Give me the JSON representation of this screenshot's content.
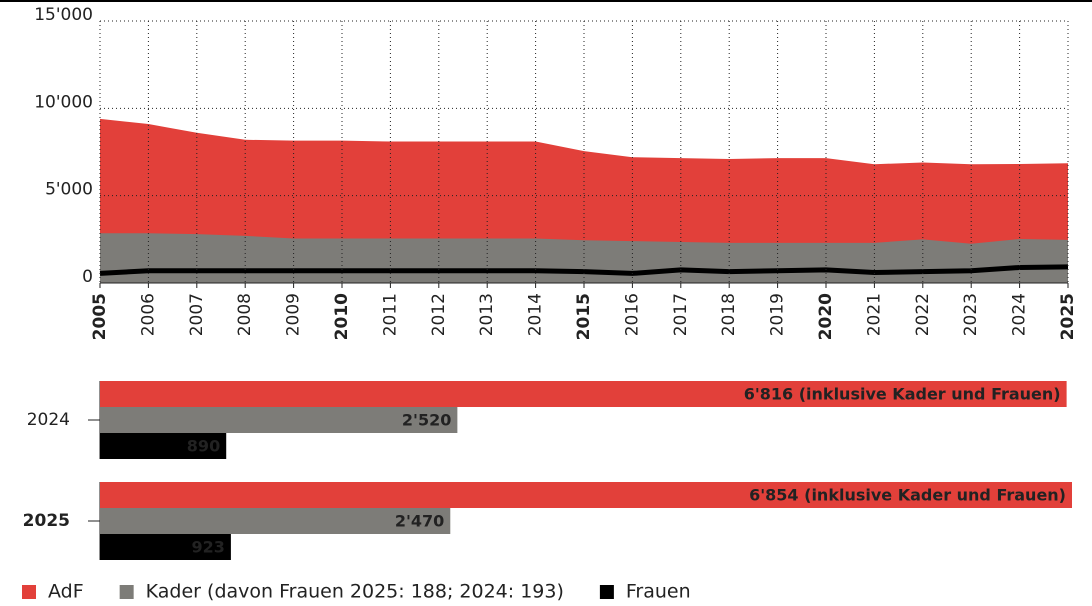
{
  "chart_data": [
    {
      "type": "area",
      "x": [
        2005,
        2006,
        2007,
        2008,
        2009,
        2010,
        2011,
        2012,
        2013,
        2014,
        2015,
        2016,
        2017,
        2018,
        2019,
        2020,
        2021,
        2022,
        2023,
        2024,
        2025
      ],
      "xlim": [
        2005,
        2025
      ],
      "ylim": [
        0,
        15000
      ],
      "yticks": [
        0,
        {
          "value": 5000,
          "label": "5'000"
        },
        {
          "value": 10000,
          "label": "10'000"
        },
        {
          "value": 15000,
          "label": "15'000"
        }
      ],
      "grid": true,
      "series": [
        {
          "name": "AdF",
          "color": "#e2403a",
          "values": [
            9400,
            9100,
            8600,
            8200,
            8150,
            8150,
            8100,
            8100,
            8100,
            8100,
            7550,
            7200,
            7150,
            7100,
            7150,
            7150,
            6800,
            6900,
            6800,
            6816,
            6854
          ]
        },
        {
          "name": "Kader (davon Frauen 2025: 188; 2024: 193)",
          "color": "#7d7c78",
          "values": [
            2850,
            2850,
            2800,
            2700,
            2550,
            2550,
            2550,
            2550,
            2550,
            2550,
            2450,
            2400,
            2350,
            2300,
            2300,
            2300,
            2300,
            2500,
            2250,
            2520,
            2470
          ]
        },
        {
          "name": "Frauen",
          "color": "#000000",
          "values": [
            550,
            700,
            700,
            700,
            700,
            700,
            700,
            700,
            700,
            700,
            650,
            550,
            750,
            650,
            700,
            750,
            600,
            650,
            700,
            890,
            923
          ]
        }
      ]
    },
    {
      "type": "hbar",
      "categories": [
        "2024",
        "2025"
      ],
      "series": [
        {
          "color": "#e2403a",
          "values": [
            6816,
            6854
          ],
          "value_labels": [
            "6'816 (inklusive Kader und Frauen)",
            "6'854 (inklusive Kader und Frauen)"
          ]
        },
        {
          "color": "#7d7c78",
          "values": [
            2520,
            2470
          ],
          "value_labels": [
            "2'520",
            "2'470"
          ]
        },
        {
          "color": "#000000",
          "values": [
            890,
            923
          ],
          "value_labels": [
            "890",
            "923"
          ]
        }
      ]
    }
  ]
}
